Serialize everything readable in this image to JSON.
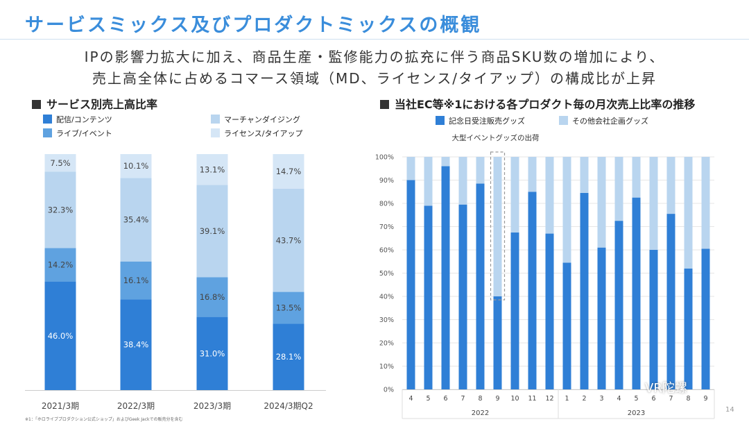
{
  "title": "サービスミックス及びプロダクトミックスの概観",
  "subtitle_line1": "IPの影響力拡大に加え、商品生産・監修能力の拡充に伴う商品SKU数の増加により、",
  "subtitle_line2": "売上高全体に占めるコマース領域（MD、ライセンス/タイアップ）の構成比が上昇",
  "footnote": "※1：「ホロライブプロダクション公式ショップ」およびGeek Jackでの販売分を含む",
  "page_number": "14",
  "watermark": "VR陀螺",
  "colors": {
    "distribution": "#2f7fd6",
    "live": "#5fa2e0",
    "merch": "#b9d5ef",
    "license": "#d5e6f6",
    "anniversary": "#2f7fd6",
    "other": "#b9d5ef"
  },
  "chart_data": [
    {
      "type": "bar",
      "stacked": true,
      "title": "サービス別売上高比率",
      "categories": [
        "2021/3期",
        "2022/3期",
        "2023/3期",
        "2024/3期Q2"
      ],
      "series": [
        {
          "name": "配信/コンテンツ",
          "values": [
            46.0,
            38.4,
            31.0,
            28.1
          ],
          "labels": [
            "46.0%",
            "38.4%",
            "31.0%",
            "28.1%"
          ]
        },
        {
          "name": "ライブ/イベント",
          "values": [
            14.2,
            16.1,
            16.8,
            13.5
          ],
          "labels": [
            "14.2%",
            "16.1%",
            "16.8%",
            "13.5%"
          ]
        },
        {
          "name": "マーチャンダイジング",
          "values": [
            32.3,
            35.4,
            39.1,
            43.7
          ],
          "labels": [
            "32.3%",
            "35.4%",
            "39.1%",
            "43.7%"
          ]
        },
        {
          "name": "ライセンス/タイアップ",
          "values": [
            7.5,
            10.1,
            13.1,
            14.7
          ],
          "labels": [
            "7.5%",
            "10.1%",
            "13.1%",
            "14.7%"
          ]
        }
      ],
      "ylim": [
        0,
        100
      ]
    },
    {
      "type": "bar",
      "stacked": true,
      "title": "当社EC等※1における各プロダクト毎の月次売上比率の推移",
      "x": [
        "4",
        "5",
        "6",
        "7",
        "8",
        "9",
        "10",
        "11",
        "12",
        "1",
        "2",
        "3",
        "4",
        "5",
        "6",
        "7",
        "8",
        "9"
      ],
      "x_groups": [
        {
          "label": "2022",
          "start": 0,
          "end": 8
        },
        {
          "label": "2023",
          "start": 9,
          "end": 17
        }
      ],
      "series": [
        {
          "name": "記念日受注販売グッズ",
          "values": [
            90,
            79,
            96,
            79.5,
            88.5,
            40,
            67.5,
            85,
            67,
            54.5,
            84.5,
            61,
            72.5,
            82.5,
            60,
            75.5,
            52,
            60.5
          ]
        },
        {
          "name": "その他会社企画グッズ",
          "values": [
            10,
            21,
            4,
            20.5,
            11.5,
            60,
            32.5,
            15,
            33,
            45.5,
            15.5,
            39,
            27.5,
            17.5,
            40,
            24.5,
            48,
            39.5
          ]
        }
      ],
      "yticks": [
        "0%",
        "10%",
        "20%",
        "30%",
        "40%",
        "50%",
        "60%",
        "70%",
        "80%",
        "90%",
        "100%"
      ],
      "ylim": [
        0,
        100
      ],
      "annotation": {
        "text": "大型イベントグッズの出荷",
        "index": 5
      }
    }
  ]
}
